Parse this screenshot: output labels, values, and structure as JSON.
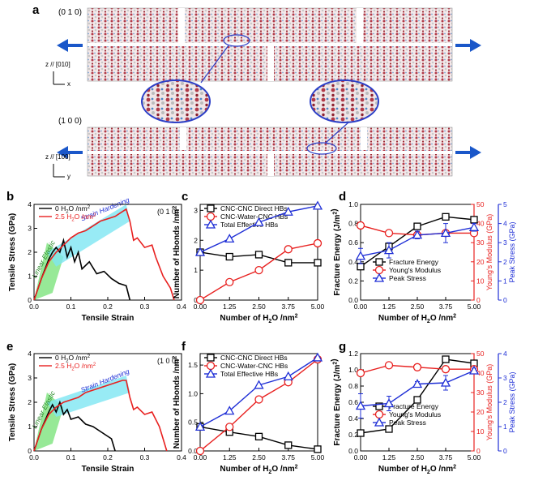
{
  "panels": {
    "a": {
      "letter": "a",
      "orient_top": "(0 1 0)",
      "orient_bottom": "(1 0 0)",
      "axis_z_top": "z // [010]",
      "axis_z_bottom": "z // [100]",
      "axis_x": "x",
      "axis_y": "y"
    }
  },
  "colors": {
    "black": "#000000",
    "red": "#e8201f",
    "blue": "#1f2fd6",
    "cyan_band": "#7ee6f2",
    "green_band": "#7de37d"
  },
  "chart_data": [
    {
      "id": "b",
      "letter": "b",
      "type": "line",
      "orientation": "(0 1 0)",
      "xlabel": "Tensile Strain",
      "ylabel": "Tensile Stress (GPa)",
      "xlim": [
        0,
        0.4
      ],
      "ylim": [
        0,
        4
      ],
      "xticks": [
        "0.0",
        "0.1",
        "0.2",
        "0.3",
        "0.4"
      ],
      "yticks": [
        "0",
        "1",
        "2",
        "3",
        "4"
      ],
      "annotations": [
        "Linear Elastic",
        "Strain Hardening"
      ],
      "series": [
        {
          "name": "0 H2O /nm2",
          "color": "#000000",
          "x": [
            0,
            0.02,
            0.04,
            0.05,
            0.06,
            0.07,
            0.08,
            0.09,
            0.1,
            0.11,
            0.12,
            0.13,
            0.15,
            0.17,
            0.19,
            0.21,
            0.23,
            0.25,
            0.26
          ],
          "y": [
            0,
            0.9,
            1.7,
            2.0,
            2.2,
            2.0,
            2.5,
            1.8,
            2.2,
            1.6,
            2.0,
            1.3,
            1.6,
            1.1,
            1.2,
            0.9,
            0.7,
            0.6,
            0
          ]
        },
        {
          "name": "2.5 H2O /nm2",
          "color": "#e8201f",
          "x": [
            0,
            0.02,
            0.04,
            0.06,
            0.08,
            0.1,
            0.12,
            0.14,
            0.16,
            0.18,
            0.2,
            0.22,
            0.24,
            0.25,
            0.26,
            0.27,
            0.28,
            0.3,
            0.32,
            0.33,
            0.35,
            0.37,
            0.38
          ],
          "y": [
            0,
            0.9,
            1.6,
            2.0,
            2.3,
            2.6,
            2.8,
            2.9,
            3.1,
            3.3,
            3.4,
            3.5,
            3.7,
            3.8,
            3.3,
            2.5,
            2.6,
            2.2,
            2.3,
            1.8,
            1.0,
            0.5,
            0
          ]
        }
      ]
    },
    {
      "id": "c",
      "letter": "c",
      "type": "line",
      "xlabel": "Number of H2O /nm2",
      "ylabel": "Number of Hbonds /nm2",
      "xlim": [
        0,
        5
      ],
      "ylim": [
        0,
        3.2
      ],
      "xticks": [
        "0.00",
        "1.25",
        "2.50",
        "3.75",
        "5.00"
      ],
      "yticks": [
        "0",
        "1",
        "2",
        "3"
      ],
      "x": [
        0,
        1.25,
        2.5,
        3.75,
        5.0
      ],
      "series": [
        {
          "name": "CNC-CNC Direct HBs",
          "color": "#000000",
          "marker": "square",
          "values": [
            1.6,
            1.45,
            1.52,
            1.25,
            1.25
          ]
        },
        {
          "name": "CNC-Water-CNC HBs",
          "color": "#e8201f",
          "marker": "circle",
          "values": [
            0.0,
            0.6,
            1.0,
            1.7,
            1.9
          ]
        },
        {
          "name": "Total Effective HBs",
          "color": "#1f2fd6",
          "marker": "triangle",
          "values": [
            1.6,
            2.05,
            2.6,
            2.95,
            3.15
          ]
        }
      ]
    },
    {
      "id": "d",
      "letter": "d",
      "type": "line",
      "xlabel": "Number of H2O /nm2",
      "ylabel": "Fracture Energy (J/m2)",
      "ylabel_right1": "Young's Modulus (GPa)",
      "ylabel_right2": "Peak Stress (GPa)",
      "xlim": [
        0,
        5
      ],
      "ylim": [
        0,
        1.0
      ],
      "ylim_right1": [
        0,
        50
      ],
      "ylim_right2": [
        0,
        5
      ],
      "xticks": [
        "0.00",
        "1.25",
        "2.50",
        "3.75",
        "5.00"
      ],
      "yticks": [
        "0.0",
        "0.2",
        "0.4",
        "0.6",
        "0.8",
        "1.0"
      ],
      "yticks_right1": [
        "0",
        "10",
        "20",
        "30",
        "40",
        "50"
      ],
      "yticks_right2": [
        "0",
        "1",
        "2",
        "3",
        "4",
        "5"
      ],
      "x": [
        0,
        1.25,
        2.5,
        3.75,
        5.0
      ],
      "series": [
        {
          "name": "Fracture Energy",
          "color": "#000000",
          "marker": "square",
          "axis": "left",
          "values": [
            0.35,
            0.56,
            0.77,
            0.87,
            0.84
          ]
        },
        {
          "name": "Young's Modulus",
          "color": "#e8201f",
          "marker": "circle",
          "axis": "right1",
          "values": [
            39,
            35,
            34,
            35,
            35
          ]
        },
        {
          "name": "Peak Stress",
          "color": "#1f2fd6",
          "marker": "triangle",
          "axis": "right2",
          "values": [
            2.3,
            2.6,
            3.4,
            3.5,
            3.8
          ],
          "errors": [
            0.4,
            0.4,
            0.2,
            0.5,
            0.2
          ]
        }
      ]
    },
    {
      "id": "e",
      "letter": "e",
      "type": "line",
      "orientation": "(1 0 0)",
      "xlabel": "Tensile Strain",
      "ylabel": "Tensile Stress (GPa)",
      "xlim": [
        0,
        0.4
      ],
      "ylim": [
        0,
        4
      ],
      "xticks": [
        "0.0",
        "0.1",
        "0.2",
        "0.3",
        "0.4"
      ],
      "yticks": [
        "0",
        "1",
        "2",
        "3",
        "4"
      ],
      "annotations": [
        "Linear Elastic",
        "Strain Hardening"
      ],
      "series": [
        {
          "name": "0 H2O /nm2",
          "color": "#000000",
          "x": [
            0,
            0.02,
            0.04,
            0.05,
            0.06,
            0.07,
            0.08,
            0.09,
            0.1,
            0.12,
            0.14,
            0.16,
            0.18,
            0.2,
            0.21,
            0.22
          ],
          "y": [
            0,
            0.9,
            1.6,
            1.9,
            1.6,
            2.0,
            1.5,
            1.7,
            1.3,
            1.4,
            1.1,
            1.0,
            0.8,
            0.6,
            0.5,
            0
          ]
        },
        {
          "name": "2.5 H2O /nm2",
          "color": "#e8201f",
          "x": [
            0,
            0.02,
            0.04,
            0.06,
            0.08,
            0.1,
            0.12,
            0.14,
            0.16,
            0.18,
            0.2,
            0.22,
            0.24,
            0.25,
            0.26,
            0.27,
            0.28,
            0.3,
            0.32,
            0.34,
            0.35,
            0.36
          ],
          "y": [
            0,
            0.9,
            1.5,
            1.8,
            2.0,
            2.1,
            2.2,
            2.4,
            2.5,
            2.6,
            2.7,
            2.8,
            2.9,
            2.9,
            2.2,
            1.7,
            1.8,
            1.5,
            1.6,
            1.0,
            0.5,
            0
          ]
        }
      ]
    },
    {
      "id": "f",
      "letter": "f",
      "type": "line",
      "xlabel": "Number of H2O /nm2",
      "ylabel": "Number of Hbonds /nm2",
      "xlim": [
        0,
        5
      ],
      "ylim": [
        0,
        1.7
      ],
      "xticks": [
        "0.00",
        "1.25",
        "2.50",
        "3.75",
        "5.00"
      ],
      "yticks": [
        "0.0",
        "0.5",
        "1.0",
        "1.5"
      ],
      "x": [
        0,
        1.25,
        2.5,
        3.75,
        5.0
      ],
      "series": [
        {
          "name": "CNC-CNC Direct HBs",
          "color": "#000000",
          "marker": "square",
          "values": [
            0.42,
            0.33,
            0.25,
            0.1,
            0.03
          ]
        },
        {
          "name": "CNC-Water-CNC HBs",
          "color": "#e8201f",
          "marker": "circle",
          "values": [
            0.0,
            0.42,
            0.9,
            1.2,
            1.6
          ]
        },
        {
          "name": "Total Effective HBs",
          "color": "#1f2fd6",
          "marker": "triangle",
          "values": [
            0.42,
            0.7,
            1.15,
            1.3,
            1.63
          ]
        }
      ]
    },
    {
      "id": "g",
      "letter": "g",
      "type": "line",
      "xlabel": "Number of H2O /nm2",
      "ylabel": "Fracture Energy (J/m2)",
      "ylabel_right1": "Young's Modulus (GPa)",
      "ylabel_right2": "Peak Stress (GPa)",
      "xlim": [
        0,
        5
      ],
      "ylim": [
        0,
        1.2
      ],
      "ylim_right1": [
        0,
        50
      ],
      "ylim_right2": [
        0,
        4
      ],
      "xticks": [
        "0.00",
        "1.25",
        "2.50",
        "3.75",
        "5.00"
      ],
      "yticks": [
        "0.0",
        "0.2",
        "0.4",
        "0.6",
        "0.8",
        "1.0",
        "1.2"
      ],
      "yticks_right1": [
        "0",
        "10",
        "20",
        "30",
        "40",
        "50"
      ],
      "yticks_right2": [
        "0",
        "1",
        "2",
        "3",
        "4"
      ],
      "x": [
        0,
        1.25,
        2.5,
        3.75,
        5.0
      ],
      "series": [
        {
          "name": "Fracture Energy",
          "color": "#000000",
          "marker": "square",
          "axis": "left",
          "values": [
            0.22,
            0.27,
            0.63,
            1.13,
            1.08
          ]
        },
        {
          "name": "Young's Modulus",
          "color": "#e8201f",
          "marker": "circle",
          "axis": "right1",
          "values": [
            40,
            44,
            43,
            42,
            42
          ]
        },
        {
          "name": "Peak Stress",
          "color": "#1f2fd6",
          "marker": "triangle",
          "axis": "right2",
          "values": [
            1.85,
            1.95,
            2.75,
            2.8,
            3.3
          ],
          "errors": [
            0.5,
            0.3,
            0.1,
            0.3,
            0.1
          ]
        }
      ]
    }
  ]
}
